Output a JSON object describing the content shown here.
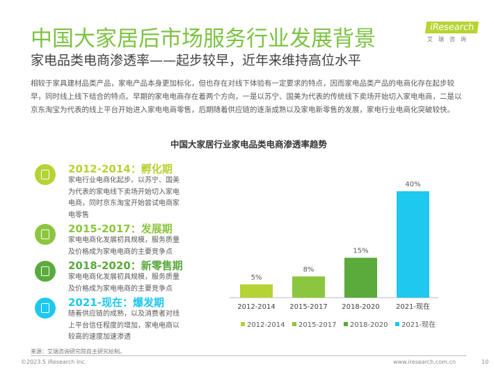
{
  "header": {
    "title": "中国大家居后市场服务行业发展背景",
    "subtitle": "家电品类电商渗透率——起步较早，近年来维持高位水平",
    "logo": "iResearch",
    "logo_cn": "艾瑞咨询"
  },
  "paragraph": "相较于家具建材品类产品，家电产品本身更加标化，但也存在对线下体验有一定要求的特点，因而家电品类产品的电商化存在起步较早，同时线上线下结合的特点。早期的家电电商存在着两个方向，一是以苏宁、国美为代表的传统线下卖场开始切入家电电商，二是以京东淘宝为代表的线上平台开始进入家电电商零售，后期随着供应链的逐渐成熟以及家电新零售的发展，家电行业电商化突破较快。",
  "stages": [
    {
      "heading": "2012-2014：孵化期",
      "text": "家电行业电商化起步。以苏宁、国美为代表的家电线下卖场开始切入家电电商，同时京东淘宝开始尝试电商家电零售",
      "color": "#b5d334"
    },
    {
      "heading": "2015-2017：发展期",
      "text": "家电电商化发展初具规模，服务质量及价格成为家电电商的主要竞争点",
      "color": "#8cc63f"
    },
    {
      "heading": "2018-2020：新零售期",
      "text": "家电电商化发展初具规模，服务质量及价格成为家电电商的主要竞争点",
      "color": "#5aaa3c"
    },
    {
      "heading": "2021-现在：爆发期",
      "text": "随着供应链的成熟，以及消费者对线上平台信任程度的增加，家电电商以较高的速度加速渗透",
      "color": "#1ec8ee"
    }
  ],
  "chart_data": {
    "type": "bar",
    "title": "中国大家居行业家电品类电商渗透率趋势",
    "categories": [
      "2012-2014",
      "2015-2017",
      "2018-2020",
      "2021-现在"
    ],
    "values": [
      5,
      8,
      15,
      40
    ],
    "labels": [
      "5%",
      "8%",
      "15%",
      "40%"
    ],
    "colors": [
      "#b5d334",
      "#8cc63f",
      "#5aaa3c",
      "#1ec8ee"
    ],
    "ylim": [
      0,
      40
    ],
    "legend": "bottom",
    "grid": false
  },
  "footer": {
    "source": "来源：艾瑞咨询研究院自主研究绘制。",
    "copyright": "©2023.5 iResearch Inc.",
    "url": "www.iresearch.com.cn",
    "page": "10"
  }
}
